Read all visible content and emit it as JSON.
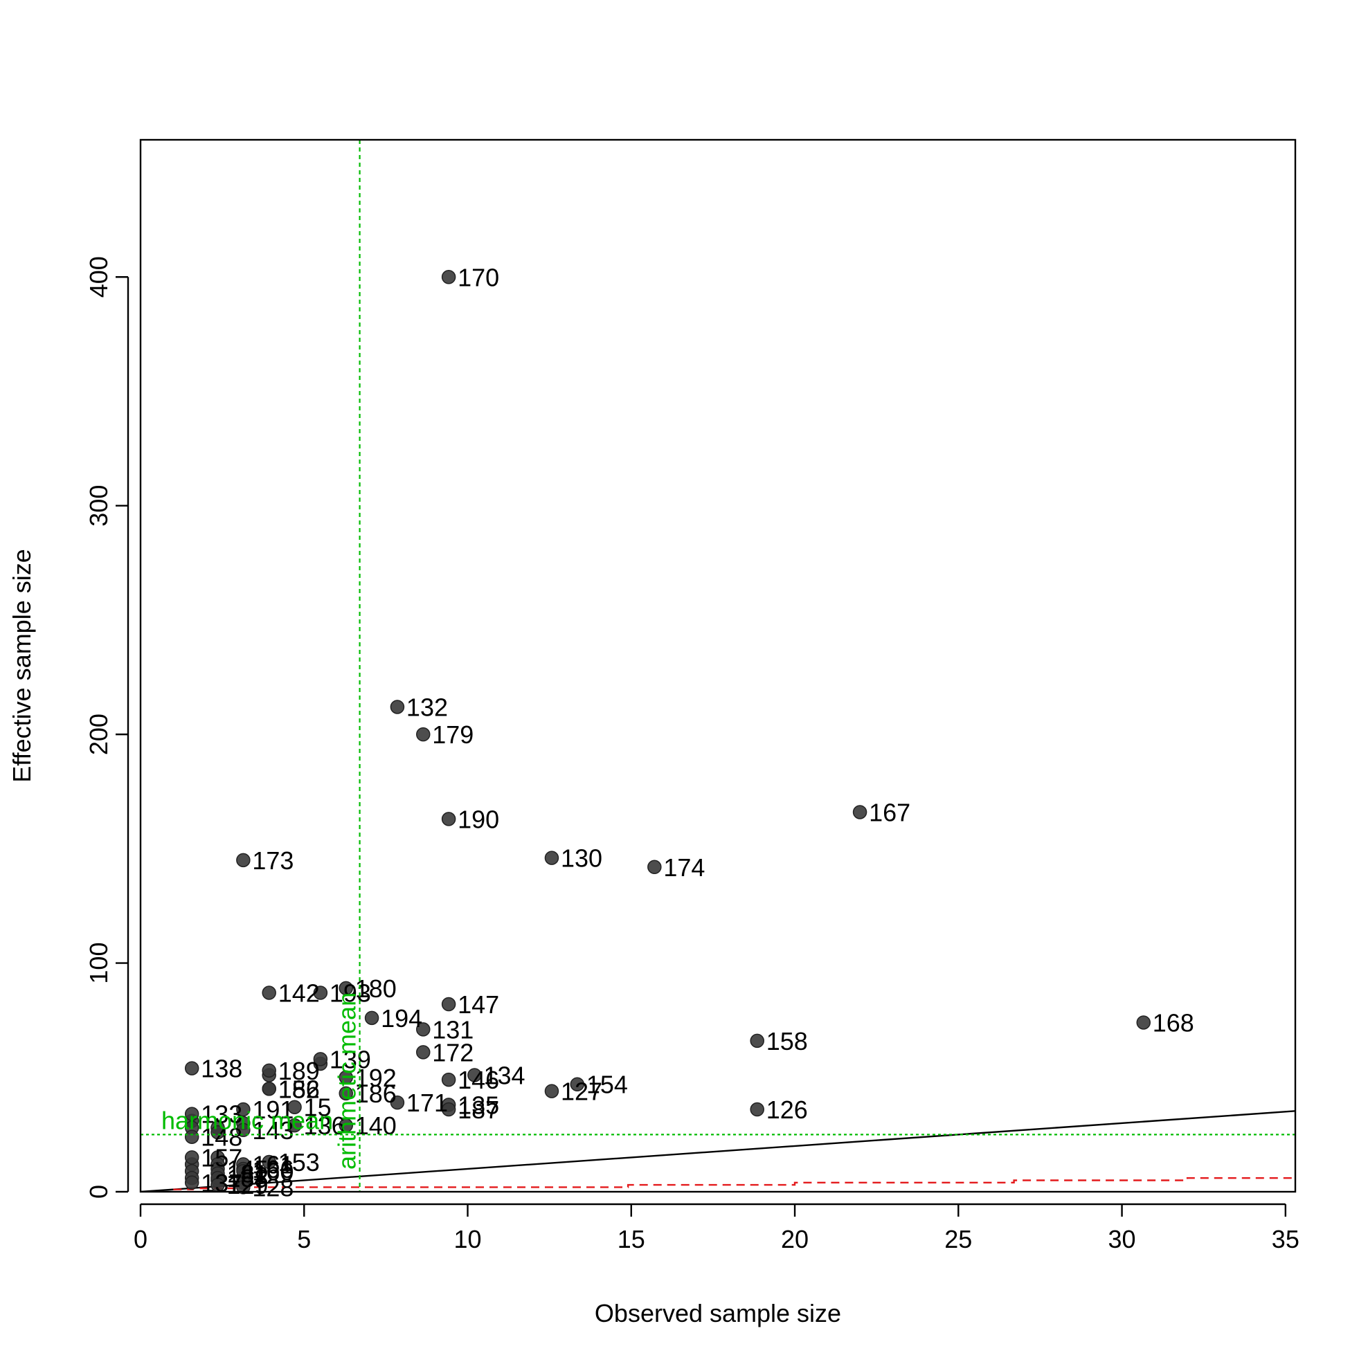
{
  "chart_data": {
    "type": "scatter",
    "title": "",
    "xlabel": "Observed sample size",
    "ylabel": "Effective sample size",
    "xlim": [
      0,
      35.3
    ],
    "ylim": [
      0,
      460
    ],
    "xticks": [
      0,
      5,
      10,
      15,
      20,
      25,
      30,
      35
    ],
    "yticks": [
      0,
      100,
      200,
      300,
      400
    ],
    "grid": false,
    "legend": "none",
    "colors": {
      "points": "#3a3a3a",
      "identity_line": "#000000",
      "reference_line": "#e41a1c",
      "means": "#00bb00"
    },
    "points": [
      {
        "label": "170",
        "x": 9.42,
        "y": 400
      },
      {
        "label": "132",
        "x": 7.85,
        "y": 212
      },
      {
        "label": "179",
        "x": 8.64,
        "y": 200
      },
      {
        "label": "167",
        "x": 21.99,
        "y": 166
      },
      {
        "label": "190",
        "x": 9.42,
        "y": 163
      },
      {
        "label": "173",
        "x": 3.14,
        "y": 145
      },
      {
        "label": "130",
        "x": 12.57,
        "y": 146
      },
      {
        "label": "174",
        "x": 15.71,
        "y": 142
      },
      {
        "label": "180",
        "x": 6.28,
        "y": 89
      },
      {
        "label": "142",
        "x": 3.93,
        "y": 87
      },
      {
        "label": "193",
        "x": 5.5,
        "y": 87
      },
      {
        "label": "147",
        "x": 9.42,
        "y": 82
      },
      {
        "label": "194",
        "x": 7.07,
        "y": 76
      },
      {
        "label": "168",
        "x": 30.66,
        "y": 74
      },
      {
        "label": "131",
        "x": 8.64,
        "y": 71
      },
      {
        "label": "158",
        "x": 18.85,
        "y": 66
      },
      {
        "label": "172",
        "x": 8.64,
        "y": 61
      },
      {
        "label": "138",
        "x": 1.57,
        "y": 54
      },
      {
        "label": "189",
        "x": 3.93,
        "y": 53
      },
      {
        "label": "139",
        "x": 5.5,
        "y": 58
      },
      {
        "label": "192",
        "x": 6.28,
        "y": 50
      },
      {
        "label": "134",
        "x": 10.21,
        "y": 51
      },
      {
        "label": "146",
        "x": 9.42,
        "y": 49
      },
      {
        "label": "154",
        "x": 13.35,
        "y": 47
      },
      {
        "label": "182",
        "x": 3.93,
        "y": 45
      },
      {
        "label": "156",
        "x": 3.93,
        "y": 45
      },
      {
        "label": "127",
        "x": 12.57,
        "y": 44
      },
      {
        "label": "186",
        "x": 6.28,
        "y": 43
      },
      {
        "label": "171",
        "x": 7.85,
        "y": 39
      },
      {
        "label": "135",
        "x": 9.42,
        "y": 38
      },
      {
        "label": "187",
        "x": 9.42,
        "y": 36
      },
      {
        "label": "126",
        "x": 18.85,
        "y": 36
      },
      {
        "label": "191",
        "x": 3.14,
        "y": 36
      },
      {
        "label": "15",
        "x": 4.71,
        "y": 37
      },
      {
        "label": "133",
        "x": 1.57,
        "y": 34
      },
      {
        "label": "140",
        "x": 6.28,
        "y": 29
      },
      {
        "label": "136",
        "x": 4.71,
        "y": 29
      },
      {
        "label": "143",
        "x": 3.14,
        "y": 27
      },
      {
        "label": "148",
        "x": 1.57,
        "y": 24
      },
      {
        "label": "157",
        "x": 1.57,
        "y": 15
      },
      {
        "label": "153",
        "x": 3.93,
        "y": 13
      },
      {
        "label": "161",
        "x": 3.14,
        "y": 12
      },
      {
        "label": "166",
        "x": 3.14,
        "y": 10
      },
      {
        "label": "145",
        "x": 2.36,
        "y": 10
      },
      {
        "label": "160",
        "x": 3.14,
        "y": 9
      },
      {
        "label": "181",
        "x": 2.36,
        "y": 8
      },
      {
        "label": "188",
        "x": 2.36,
        "y": 6
      },
      {
        "label": "137",
        "x": 1.57,
        "y": 4
      },
      {
        "label": "129",
        "x": 2.36,
        "y": 3
      },
      {
        "label": "128",
        "x": 3.14,
        "y": 2
      }
    ],
    "extra_points": [
      {
        "x": 2.36,
        "y": 28
      },
      {
        "x": 2.36,
        "y": 26
      },
      {
        "x": 3.14,
        "y": 30
      },
      {
        "x": 1.57,
        "y": 31
      },
      {
        "x": 1.57,
        "y": 28
      },
      {
        "x": 1.57,
        "y": 12
      },
      {
        "x": 1.57,
        "y": 9
      },
      {
        "x": 1.57,
        "y": 6
      },
      {
        "x": 2.36,
        "y": 15
      },
      {
        "x": 2.36,
        "y": 12
      },
      {
        "x": 3.14,
        "y": 6
      },
      {
        "x": 3.14,
        "y": 4
      },
      {
        "x": 2.36,
        "y": 5
      },
      {
        "x": 3.93,
        "y": 51
      },
      {
        "x": 5.5,
        "y": 56
      }
    ],
    "identity_line": {
      "x": [
        0,
        35.3
      ],
      "y": [
        0,
        35.3
      ]
    },
    "reference_line": {
      "x": [
        1,
        1.6,
        1.6,
        3.2,
        3.2,
        4.8,
        4.8,
        6.4,
        6.4,
        8,
        8,
        9.6,
        9.6,
        11.2,
        11.2,
        12.8,
        12.8,
        14.9,
        14.9,
        16.0,
        16.0,
        20.0,
        20.0,
        21.3,
        21.3,
        26.7,
        26.7,
        32.0,
        32.0,
        35.3
      ],
      "y": [
        1,
        1,
        1.5,
        1.5,
        2,
        2,
        2,
        2,
        2,
        2,
        2,
        2,
        2,
        2,
        2,
        2,
        2,
        2,
        3,
        3,
        3,
        3,
        4,
        4,
        4,
        4,
        5,
        5,
        6,
        6
      ]
    },
    "arithmetic_mean": {
      "label": "arithmetic mean",
      "x": 6.7
    },
    "harmonic_mean": {
      "label": "harmonic mean",
      "y": 25
    }
  }
}
